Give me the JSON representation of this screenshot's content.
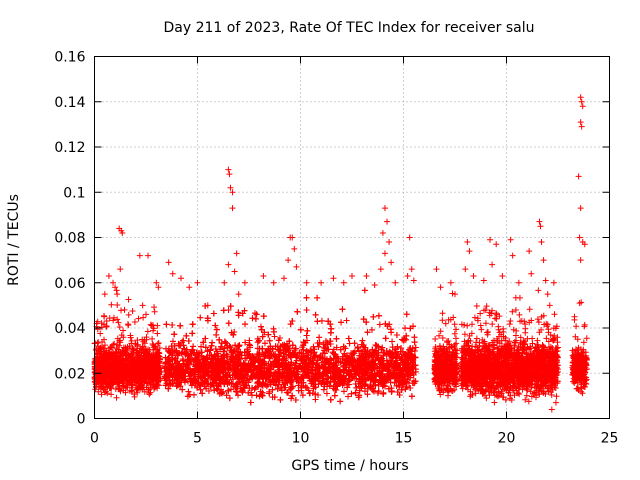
{
  "chart_data": {
    "type": "scatter",
    "title": "Day 211 of 2023, Rate Of TEC Index for receiver salu",
    "xlabel": "GPS time / hours",
    "ylabel": "ROTI / TECUs",
    "xlim": [
      0,
      25
    ],
    "ylim": [
      0,
      0.16
    ],
    "xticks": [
      0,
      5,
      10,
      15,
      20,
      25
    ],
    "xtick_labels": [
      "0",
      "5",
      "10",
      "15",
      "20",
      "25"
    ],
    "yticks": [
      0,
      0.02,
      0.04,
      0.06,
      0.08,
      0.1,
      0.12,
      0.14,
      0.16
    ],
    "ytick_labels": [
      "0",
      "0.02",
      "0.04",
      "0.06",
      "0.08",
      "0.1",
      "0.12",
      "0.14",
      "0.16"
    ],
    "grid": true,
    "marker": "+",
    "color": "#ff0000",
    "segments": [
      {
        "start": 0.0,
        "end": 3.2,
        "base": 0.022,
        "spread": 0.014
      },
      {
        "start": 3.4,
        "end": 15.6,
        "base": 0.022,
        "spread": 0.016
      },
      {
        "start": 16.5,
        "end": 17.6,
        "base": 0.022,
        "spread": 0.014
      },
      {
        "start": 17.8,
        "end": 22.5,
        "base": 0.022,
        "spread": 0.016
      },
      {
        "start": 23.2,
        "end": 23.9,
        "base": 0.022,
        "spread": 0.012
      }
    ],
    "outliers": [
      {
        "x": 1.2,
        "y": 0.084
      },
      {
        "x": 1.3,
        "y": 0.083
      },
      {
        "x": 1.35,
        "y": 0.082
      },
      {
        "x": 0.9,
        "y": 0.06
      },
      {
        "x": 1.0,
        "y": 0.058
      },
      {
        "x": 1.1,
        "y": 0.055
      },
      {
        "x": 1.25,
        "y": 0.066
      },
      {
        "x": 0.7,
        "y": 0.063
      },
      {
        "x": 0.5,
        "y": 0.055
      },
      {
        "x": 2.2,
        "y": 0.072
      },
      {
        "x": 2.6,
        "y": 0.072
      },
      {
        "x": 2.5,
        "y": 0.046
      },
      {
        "x": 3.0,
        "y": 0.06
      },
      {
        "x": 3.1,
        "y": 0.058
      },
      {
        "x": 3.6,
        "y": 0.069
      },
      {
        "x": 3.8,
        "y": 0.064
      },
      {
        "x": 4.2,
        "y": 0.062
      },
      {
        "x": 4.6,
        "y": 0.058
      },
      {
        "x": 5.0,
        "y": 0.06
      },
      {
        "x": 5.5,
        "y": 0.05
      },
      {
        "x": 6.5,
        "y": 0.11
      },
      {
        "x": 6.55,
        "y": 0.108
      },
      {
        "x": 6.6,
        "y": 0.102
      },
      {
        "x": 6.7,
        "y": 0.1
      },
      {
        "x": 6.7,
        "y": 0.093
      },
      {
        "x": 6.5,
        "y": 0.068
      },
      {
        "x": 6.9,
        "y": 0.073
      },
      {
        "x": 6.8,
        "y": 0.065
      },
      {
        "x": 6.3,
        "y": 0.06
      },
      {
        "x": 7.0,
        "y": 0.055
      },
      {
        "x": 7.3,
        "y": 0.06
      },
      {
        "x": 8.2,
        "y": 0.063
      },
      {
        "x": 8.7,
        "y": 0.06
      },
      {
        "x": 9.2,
        "y": 0.062
      },
      {
        "x": 9.5,
        "y": 0.08
      },
      {
        "x": 9.6,
        "y": 0.08
      },
      {
        "x": 9.4,
        "y": 0.07
      },
      {
        "x": 9.8,
        "y": 0.067
      },
      {
        "x": 9.7,
        "y": 0.075
      },
      {
        "x": 10.3,
        "y": 0.06
      },
      {
        "x": 11.0,
        "y": 0.06
      },
      {
        "x": 11.6,
        "y": 0.062
      },
      {
        "x": 12.1,
        "y": 0.06
      },
      {
        "x": 12.5,
        "y": 0.063
      },
      {
        "x": 13.2,
        "y": 0.063
      },
      {
        "x": 13.6,
        "y": 0.059
      },
      {
        "x": 14.1,
        "y": 0.093
      },
      {
        "x": 14.2,
        "y": 0.087
      },
      {
        "x": 14.0,
        "y": 0.082
      },
      {
        "x": 14.3,
        "y": 0.078
      },
      {
        "x": 14.1,
        "y": 0.073
      },
      {
        "x": 13.9,
        "y": 0.066
      },
      {
        "x": 14.4,
        "y": 0.069
      },
      {
        "x": 14.6,
        "y": 0.06
      },
      {
        "x": 15.3,
        "y": 0.08
      },
      {
        "x": 15.4,
        "y": 0.066
      },
      {
        "x": 15.5,
        "y": 0.061
      },
      {
        "x": 15.2,
        "y": 0.063
      },
      {
        "x": 16.6,
        "y": 0.066
      },
      {
        "x": 16.8,
        "y": 0.058
      },
      {
        "x": 17.3,
        "y": 0.06
      },
      {
        "x": 17.5,
        "y": 0.055
      },
      {
        "x": 18.1,
        "y": 0.078
      },
      {
        "x": 18.2,
        "y": 0.074
      },
      {
        "x": 18.0,
        "y": 0.066
      },
      {
        "x": 18.4,
        "y": 0.063
      },
      {
        "x": 18.9,
        "y": 0.061
      },
      {
        "x": 19.2,
        "y": 0.079
      },
      {
        "x": 19.5,
        "y": 0.077
      },
      {
        "x": 19.3,
        "y": 0.068
      },
      {
        "x": 19.8,
        "y": 0.063
      },
      {
        "x": 20.2,
        "y": 0.079
      },
      {
        "x": 20.3,
        "y": 0.072
      },
      {
        "x": 20.6,
        "y": 0.06
      },
      {
        "x": 21.1,
        "y": 0.074
      },
      {
        "x": 21.2,
        "y": 0.064
      },
      {
        "x": 21.6,
        "y": 0.087
      },
      {
        "x": 21.65,
        "y": 0.085
      },
      {
        "x": 21.7,
        "y": 0.078
      },
      {
        "x": 21.8,
        "y": 0.07
      },
      {
        "x": 21.9,
        "y": 0.061
      },
      {
        "x": 22.0,
        "y": 0.055
      },
      {
        "x": 22.1,
        "y": 0.05
      },
      {
        "x": 22.3,
        "y": 0.06
      },
      {
        "x": 22.2,
        "y": 0.004
      },
      {
        "x": 22.4,
        "y": 0.007
      },
      {
        "x": 23.6,
        "y": 0.142
      },
      {
        "x": 23.65,
        "y": 0.14
      },
      {
        "x": 23.7,
        "y": 0.138
      },
      {
        "x": 23.6,
        "y": 0.131
      },
      {
        "x": 23.65,
        "y": 0.129
      },
      {
        "x": 23.5,
        "y": 0.107
      },
      {
        "x": 23.6,
        "y": 0.093
      },
      {
        "x": 23.55,
        "y": 0.08
      },
      {
        "x": 23.7,
        "y": 0.078
      },
      {
        "x": 23.8,
        "y": 0.077
      },
      {
        "x": 23.6,
        "y": 0.07
      },
      {
        "x": 23.55,
        "y": 0.051
      },
      {
        "x": 23.3,
        "y": 0.045
      }
    ]
  }
}
